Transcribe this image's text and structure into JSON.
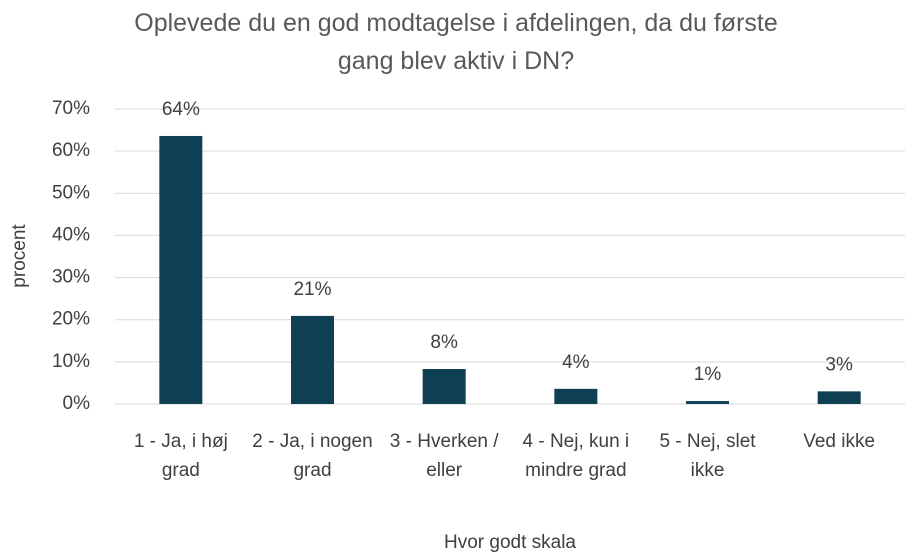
{
  "chart_data": {
    "type": "bar",
    "title": "Oplevede du en god modtagelse i afdelingen, da du første gang blev aktiv i DN?",
    "x_label": "Hvor godt skala",
    "y_label": "procent",
    "categories": [
      "1 - Ja, i høj grad",
      "2 - Ja, i nogen grad",
      "3 - Hverken / eller",
      "4 - Nej, kun i mindre grad",
      "5 - Nej, slet ikke",
      "Ved ikke"
    ],
    "values": [
      63.6,
      20.9,
      8.3,
      3.6,
      0.7,
      3.0
    ],
    "value_labels": [
      "64%",
      "21%",
      "8%",
      "4%",
      "1%",
      "3%"
    ],
    "color": "#0e3f52",
    "ylim": [
      0,
      70
    ],
    "yticks": [
      {
        "value": 0,
        "label": "0%"
      },
      {
        "value": 10,
        "label": "10%"
      },
      {
        "value": 20,
        "label": "20%"
      },
      {
        "value": 30,
        "label": "30%"
      },
      {
        "value": 40,
        "label": "40%"
      },
      {
        "value": 50,
        "label": "50%"
      },
      {
        "value": 60,
        "label": "60%"
      },
      {
        "value": 70,
        "label": "70%"
      }
    ],
    "grid": true
  }
}
